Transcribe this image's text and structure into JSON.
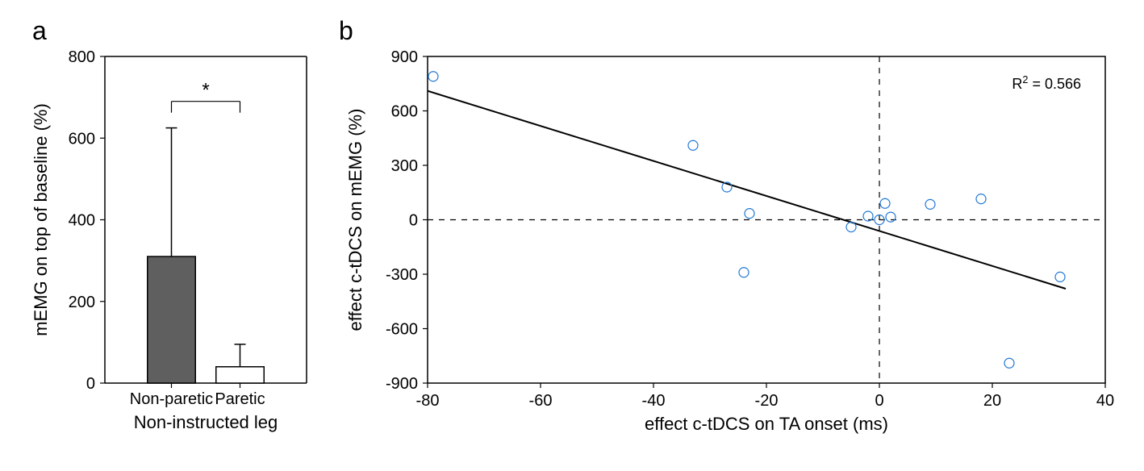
{
  "panel_a": {
    "label": "a",
    "type": "bar",
    "ylabel": "mEMG on top of baseline (%)",
    "xlabel": "Non-instructed leg",
    "ylim": [
      0,
      800
    ],
    "ytick_step": 200,
    "yticks": [
      0,
      200,
      400,
      600,
      800
    ],
    "categories": [
      "Non-paretic",
      "Paretic"
    ],
    "values": [
      310,
      40
    ],
    "errors": [
      315,
      55
    ],
    "bar_colors": [
      "#5f5f5f",
      "#ffffff"
    ],
    "bar_edge_color": "#000000",
    "error_color": "#000000",
    "sig_marker": "*",
    "background_color": "#ffffff",
    "axis_color": "#000000",
    "tick_fontsize": 20,
    "label_fontsize": 22,
    "panel_label_fontsize": 32
  },
  "panel_b": {
    "label": "b",
    "type": "scatter",
    "xlabel": "effect c-tDCS on TA onset (ms)",
    "ylabel": "effect c-tDCS on mEMG (%)",
    "xlim": [
      -80,
      40
    ],
    "ylim": [
      -900,
      900
    ],
    "xticks": [
      -80,
      -60,
      -40,
      -20,
      0,
      20,
      40
    ],
    "yticks": [
      -900,
      -600,
      -300,
      0,
      300,
      600,
      900
    ],
    "points": [
      {
        "x": -79,
        "y": 790
      },
      {
        "x": -33,
        "y": 410
      },
      {
        "x": -27,
        "y": 180
      },
      {
        "x": -24,
        "y": -290
      },
      {
        "x": -23,
        "y": 35
      },
      {
        "x": -5,
        "y": -40
      },
      {
        "x": -2,
        "y": 20
      },
      {
        "x": 0,
        "y": 0
      },
      {
        "x": 1,
        "y": 90
      },
      {
        "x": 2,
        "y": 15
      },
      {
        "x": 9,
        "y": 85
      },
      {
        "x": 18,
        "y": 115
      },
      {
        "x": 23,
        "y": -790
      },
      {
        "x": 32,
        "y": -315
      }
    ],
    "marker_color": "#1f77d4",
    "marker_fill": "none",
    "marker_radius": 6,
    "marker_stroke_width": 1.2,
    "regression_line": {
      "x1": -80,
      "y1": 710,
      "x2": 33,
      "y2": -380
    },
    "regression_color": "#000000",
    "regression_width": 2,
    "r2_text": "R",
    "r2_sup": "2",
    "r2_val": " = 0.566",
    "r2_fontsize": 18,
    "axis_color": "#000000",
    "dash_color": "#000000",
    "background_color": "#ffffff",
    "tick_fontsize": 20,
    "label_fontsize": 22,
    "panel_label_fontsize": 32
  }
}
